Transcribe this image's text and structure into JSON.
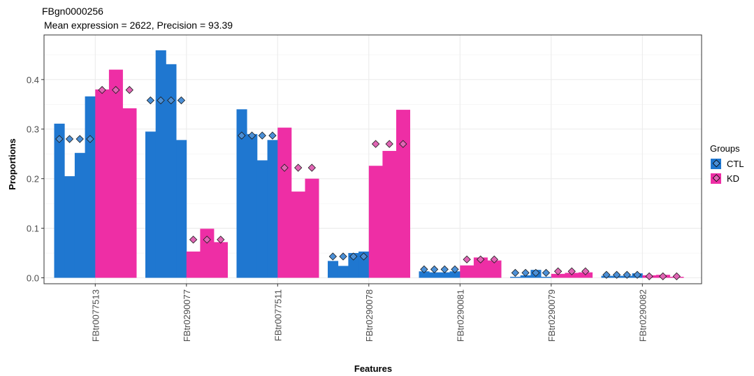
{
  "chart_data": {
    "type": "bar",
    "title": "FBgn0000256",
    "subtitle": "Mean expression = 2622, Precision = 93.39",
    "xlabel": "Features",
    "ylabel": "Proportions",
    "ylim": [
      -0.012,
      0.49
    ],
    "yticks": [
      0.0,
      0.1,
      0.2,
      0.3,
      0.4
    ],
    "ytick_labels": [
      "0.0",
      "0.1",
      "0.2",
      "0.3",
      "0.4"
    ],
    "grid": true,
    "legend": {
      "title": "Groups",
      "position": "right",
      "entries": [
        {
          "name": "CTL",
          "color": "#1f77d0"
        },
        {
          "name": "KD",
          "color": "#ee2ea5"
        }
      ]
    },
    "categories": [
      "FBtr0077513",
      "FBtr0290077",
      "FBtr0077511",
      "FBtr0290078",
      "FBtr0290081",
      "FBtr0290079",
      "FBtr0290082"
    ],
    "series": [
      {
        "name": "CTL",
        "color": "#1f77d0",
        "marker_color": "#4b8fd6",
        "replicates": [
          [
            0.311,
            0.205,
            0.252,
            0.366
          ],
          [
            0.295,
            0.459,
            0.431,
            0.278
          ],
          [
            0.34,
            0.29,
            0.237,
            0.278
          ],
          [
            0.034,
            0.024,
            0.05,
            0.053
          ],
          [
            0.013,
            0.011,
            0.011,
            0.013
          ],
          [
            0.002,
            0.005,
            0.016,
            0.002
          ],
          [
            0.004,
            0.004,
            0.004,
            0.009
          ]
        ],
        "means": [
          0.28,
          0.358,
          0.287,
          0.043,
          0.017,
          0.01,
          0.006
        ]
      },
      {
        "name": "KD",
        "color": "#ee2ea5",
        "marker_color": "#e065b4",
        "replicates": [
          [
            0.38,
            0.42,
            0.342
          ],
          [
            0.053,
            0.099,
            0.072
          ],
          [
            0.303,
            0.174,
            0.2
          ],
          [
            0.226,
            0.256,
            0.339
          ],
          [
            0.025,
            0.041,
            0.035
          ],
          [
            0.008,
            0.01,
            0.011
          ],
          [
            0.005,
            0.006,
            0.002
          ]
        ],
        "means": [
          0.379,
          0.077,
          0.222,
          0.27,
          0.037,
          0.013,
          0.003
        ]
      }
    ]
  }
}
